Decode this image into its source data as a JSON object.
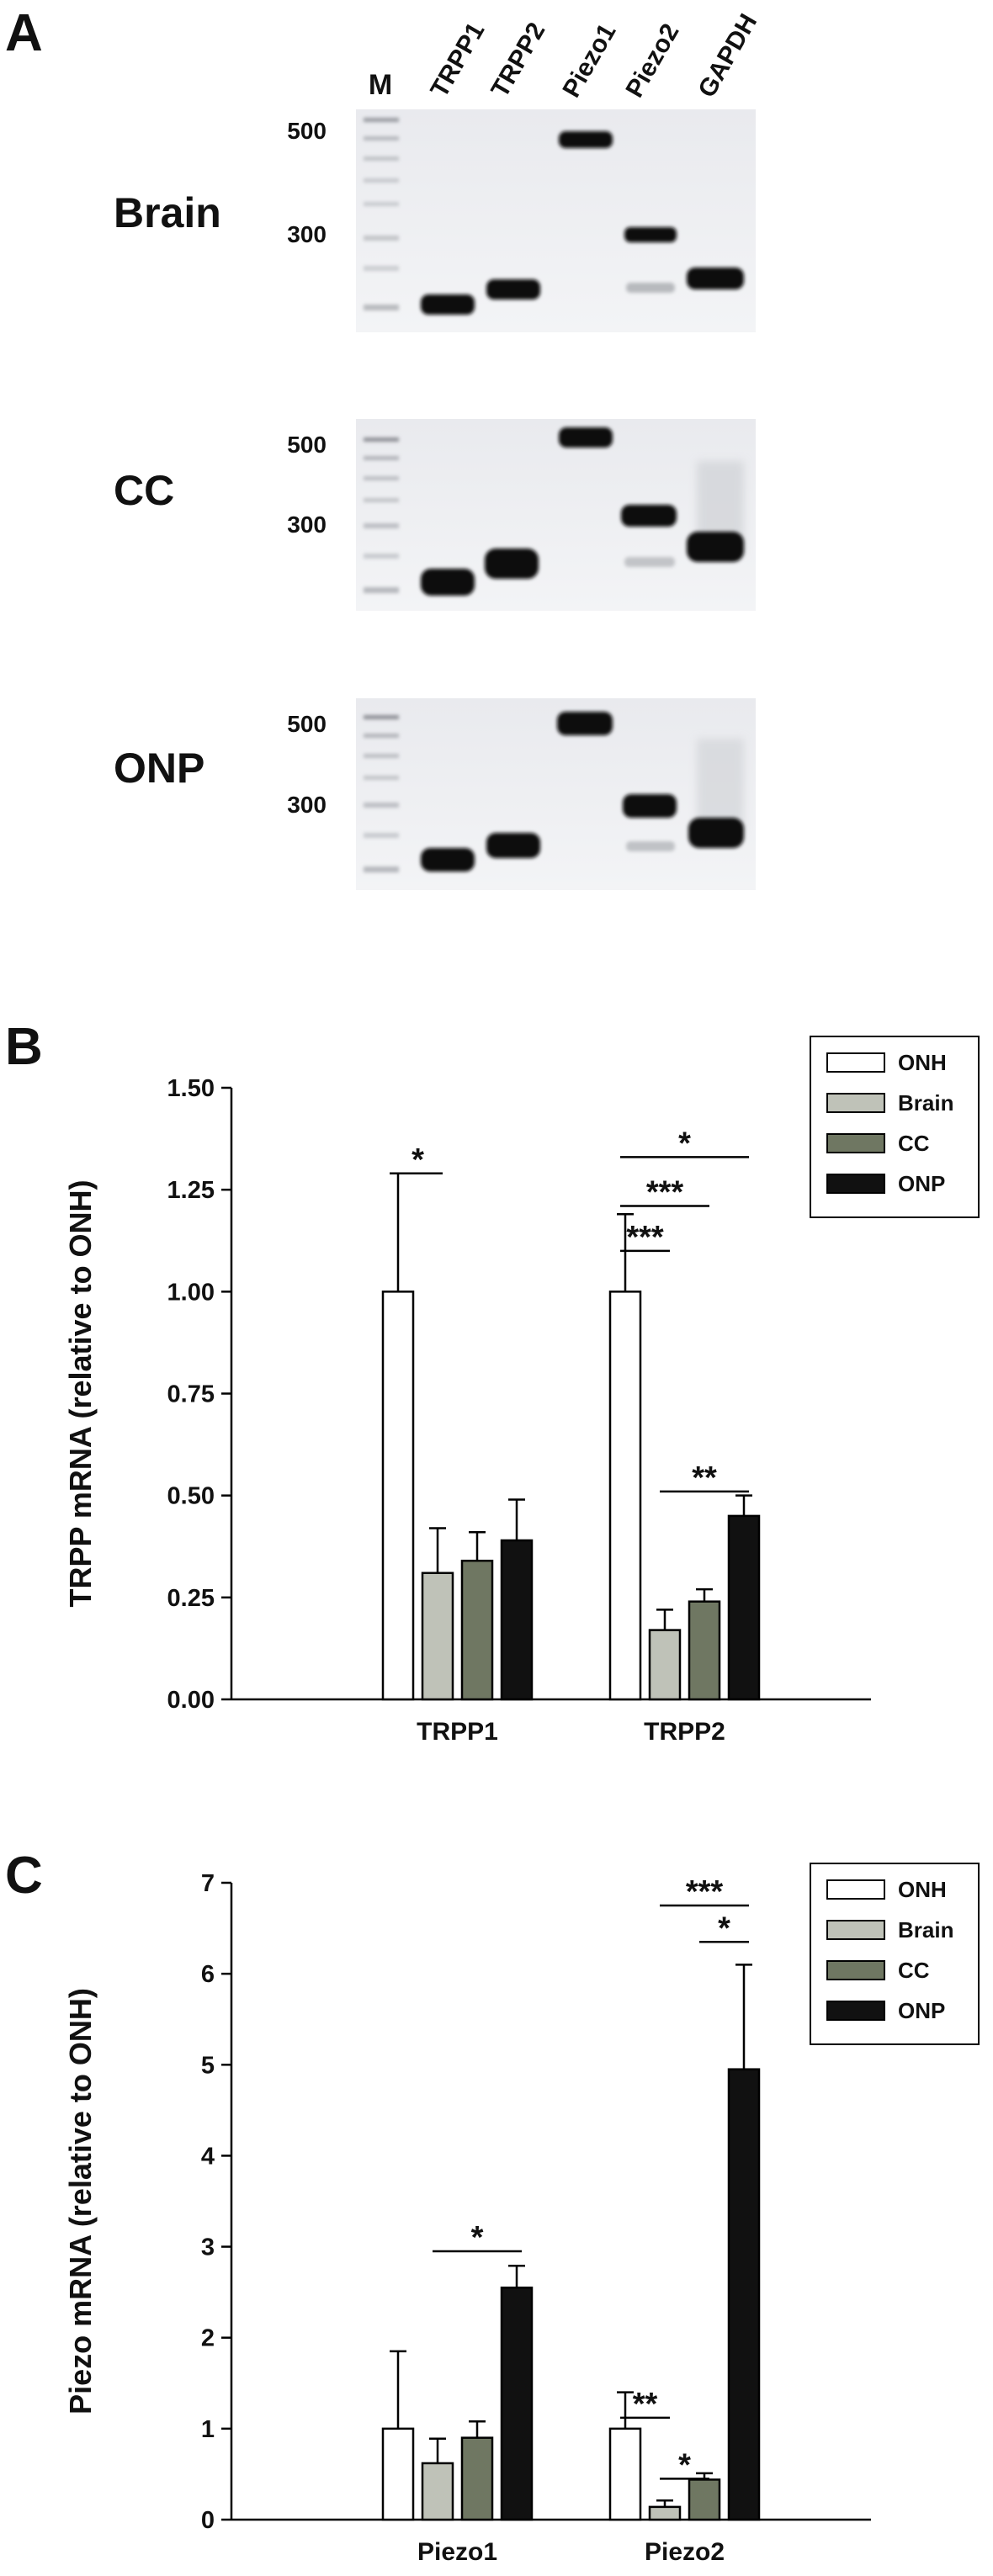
{
  "panels": {
    "a": "A",
    "b": "B",
    "c": "C"
  },
  "gel": {
    "ladder_label": "M",
    "lanes": [
      "TRPP1",
      "TRPP2",
      "Piezo1",
      "Piezo2",
      "GAPDH"
    ],
    "marker_sizes": [
      "500",
      "300"
    ],
    "tissues": [
      "Brain",
      "CC",
      "ONP"
    ]
  },
  "chart_data": [
    {
      "type": "bar",
      "ylabel": "TRPP mRNA (relative to ONH)",
      "ylim": [
        0,
        1.5
      ],
      "yticks": [
        "0.00",
        "0.25",
        "0.50",
        "0.75",
        "1.00",
        "1.25",
        "1.50"
      ],
      "categories": [
        "TRPP1",
        "TRPP2"
      ],
      "legend_position": "top-right",
      "series": [
        {
          "name": "ONH",
          "color": "#ffffff",
          "values": [
            1.0,
            1.0
          ],
          "errors": [
            0.29,
            0.19
          ]
        },
        {
          "name": "Brain",
          "color": "#bfc2b8",
          "values": [
            0.31,
            0.17
          ],
          "errors": [
            0.11,
            0.05
          ]
        },
        {
          "name": "CC",
          "color": "#6f7762",
          "values": [
            0.34,
            0.24
          ],
          "errors": [
            0.07,
            0.03
          ]
        },
        {
          "name": "ONP",
          "color": "#111111",
          "values": [
            0.39,
            0.45
          ],
          "errors": [
            0.1,
            0.05
          ]
        }
      ],
      "significance": [
        {
          "category": 0,
          "from": 0,
          "to": 1,
          "label": "*",
          "y": 1.29
        },
        {
          "category": 1,
          "from": 0,
          "to": 1,
          "label": "***",
          "y": 1.1
        },
        {
          "category": 1,
          "from": 0,
          "to": 2,
          "label": "***",
          "y": 1.21
        },
        {
          "category": 1,
          "from": 0,
          "to": 3,
          "label": "*",
          "y": 1.33
        },
        {
          "category": 1,
          "from": 1,
          "to": 3,
          "label": "**",
          "y": 0.51
        }
      ]
    },
    {
      "type": "bar",
      "ylabel": "Piezo mRNA (relative to ONH)",
      "ylim": [
        0,
        7
      ],
      "yticks": [
        "0",
        "1",
        "2",
        "3",
        "4",
        "5",
        "6",
        "7"
      ],
      "categories": [
        "Piezo1",
        "Piezo2"
      ],
      "legend_position": "top-right",
      "series": [
        {
          "name": "ONH",
          "color": "#ffffff",
          "values": [
            1.0,
            1.0
          ],
          "errors": [
            0.85,
            0.4
          ]
        },
        {
          "name": "Brain",
          "color": "#bfc2b8",
          "values": [
            0.62,
            0.14
          ],
          "errors": [
            0.27,
            0.07
          ]
        },
        {
          "name": "CC",
          "color": "#6f7762",
          "values": [
            0.9,
            0.44
          ],
          "errors": [
            0.18,
            0.07
          ]
        },
        {
          "name": "ONP",
          "color": "#111111",
          "values": [
            2.55,
            4.95
          ],
          "errors": [
            0.24,
            1.15
          ]
        }
      ],
      "significance": [
        {
          "category": 0,
          "from": 1,
          "to": 3,
          "label": "*",
          "y": 2.95
        },
        {
          "category": 1,
          "from": 0,
          "to": 1,
          "label": "**",
          "y": 1.12
        },
        {
          "category": 1,
          "from": 1,
          "to": 2,
          "label": "*",
          "y": 0.45
        },
        {
          "category": 1,
          "from": 2,
          "to": 3,
          "label": "*",
          "y": 6.35
        },
        {
          "category": 1,
          "from": 1,
          "to": 3,
          "label": "***",
          "y": 6.75
        }
      ]
    }
  ]
}
